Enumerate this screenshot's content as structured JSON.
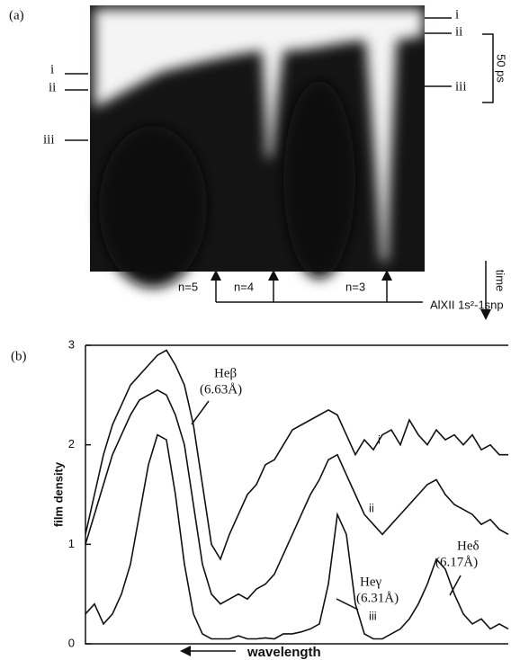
{
  "panel_a": {
    "label": "(a)",
    "right_marks": [
      "i",
      "ii",
      "iii"
    ],
    "left_marks": [
      "i",
      "ii",
      "iii"
    ],
    "scale": "50 ps",
    "time_label": "time",
    "lines": [
      "n=5",
      "n=4",
      "n=3"
    ],
    "transition": "AlXII 1s²-1snp"
  },
  "chart_data": {
    "type": "line",
    "panel_label": "(b)",
    "ylabel": "film density",
    "xlabel": "wavelength",
    "ylim": [
      0,
      3
    ],
    "yticks": [
      0,
      1,
      2,
      3
    ],
    "annotations": [
      "Heβ",
      "(6.63Å)",
      "Heγ",
      "(6.31Å)",
      "Heδ",
      "(6.17Å)"
    ],
    "series": [
      {
        "name": "i",
        "color": "#111111",
        "values": [
          1.1,
          1.5,
          1.9,
          2.2,
          2.4,
          2.6,
          2.7,
          2.8,
          2.9,
          2.95,
          2.8,
          2.6,
          2.2,
          1.6,
          1.0,
          0.85,
          1.1,
          1.3,
          1.5,
          1.6,
          1.8,
          1.85,
          2.0,
          2.15,
          2.2,
          2.25,
          2.3,
          2.35,
          2.3,
          2.1,
          1.9,
          2.05,
          1.95,
          2.1,
          2.15,
          2.0,
          2.25,
          2.1,
          2.0,
          2.15,
          2.05,
          2.1,
          2.0,
          2.1,
          1.95,
          2.0,
          1.9,
          1.9
        ]
      },
      {
        "name": "ii",
        "color": "#111111",
        "values": [
          1.0,
          1.3,
          1.6,
          1.9,
          2.1,
          2.3,
          2.45,
          2.5,
          2.55,
          2.5,
          2.3,
          2.0,
          1.4,
          0.8,
          0.5,
          0.4,
          0.45,
          0.5,
          0.45,
          0.55,
          0.6,
          0.7,
          0.9,
          1.1,
          1.3,
          1.5,
          1.65,
          1.85,
          1.9,
          1.7,
          1.5,
          1.3,
          1.2,
          1.1,
          1.2,
          1.3,
          1.4,
          1.5,
          1.6,
          1.65,
          1.5,
          1.4,
          1.35,
          1.3,
          1.2,
          1.25,
          1.15,
          1.1
        ]
      },
      {
        "name": "iii",
        "color": "#111111",
        "values": [
          0.3,
          0.4,
          0.2,
          0.3,
          0.5,
          0.8,
          1.3,
          1.8,
          2.1,
          2.05,
          1.5,
          0.8,
          0.3,
          0.1,
          0.05,
          0.05,
          0.05,
          0.08,
          0.05,
          0.05,
          0.06,
          0.05,
          0.1,
          0.1,
          0.12,
          0.15,
          0.2,
          0.6,
          1.3,
          1.1,
          0.4,
          0.1,
          0.05,
          0.05,
          0.1,
          0.15,
          0.25,
          0.4,
          0.6,
          0.85,
          0.75,
          0.5,
          0.3,
          0.2,
          0.25,
          0.15,
          0.2,
          0.15
        ]
      }
    ]
  }
}
